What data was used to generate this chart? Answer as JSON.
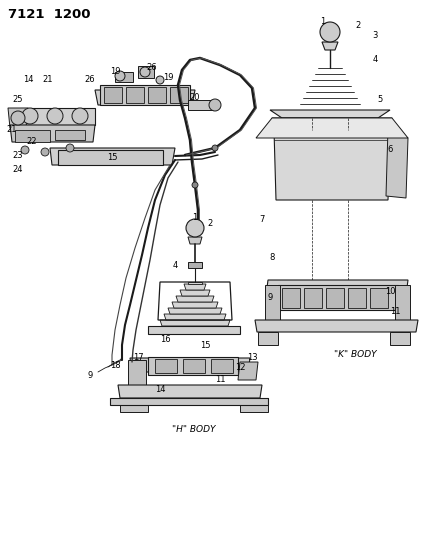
{
  "title": "7121  1200",
  "bg_color": "#ffffff",
  "k_body_label": "\"K\" BODY",
  "h_body_label": "\"H\" BODY",
  "line_color": "#1a1a1a",
  "label_fontsize": 6.0,
  "title_fontsize": 9.5
}
